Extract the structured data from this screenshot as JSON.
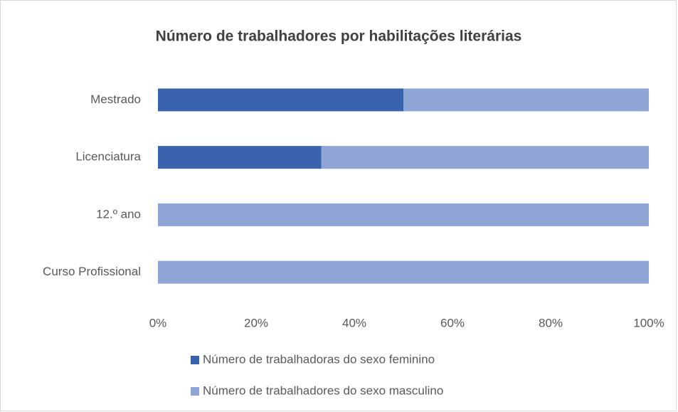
{
  "chart_data": {
    "type": "stacked_bar_horizontal",
    "title": "Número de trabalhadores por habilitações literárias",
    "categories": [
      "Mestrado",
      "Licenciatura",
      "12.º ano",
      "Curso Profissional"
    ],
    "series": [
      {
        "name": "Número de trabalhadoras do sexo feminino",
        "color": "#3a63ad",
        "values": [
          50,
          33.3,
          0,
          0
        ]
      },
      {
        "name": "Número de trabalhadores do sexo masculino",
        "color": "#8fa5d6",
        "values": [
          50,
          66.7,
          100,
          100
        ]
      }
    ],
    "xlim": [
      0,
      100
    ],
    "xticks": [
      {
        "value": 0,
        "label": "0%"
      },
      {
        "value": 20,
        "label": "20%"
      },
      {
        "value": 40,
        "label": "40%"
      },
      {
        "value": 60,
        "label": "60%"
      },
      {
        "value": 80,
        "label": "80%"
      },
      {
        "value": 100,
        "label": "100%"
      }
    ],
    "grid": false,
    "legend": "bottom"
  }
}
